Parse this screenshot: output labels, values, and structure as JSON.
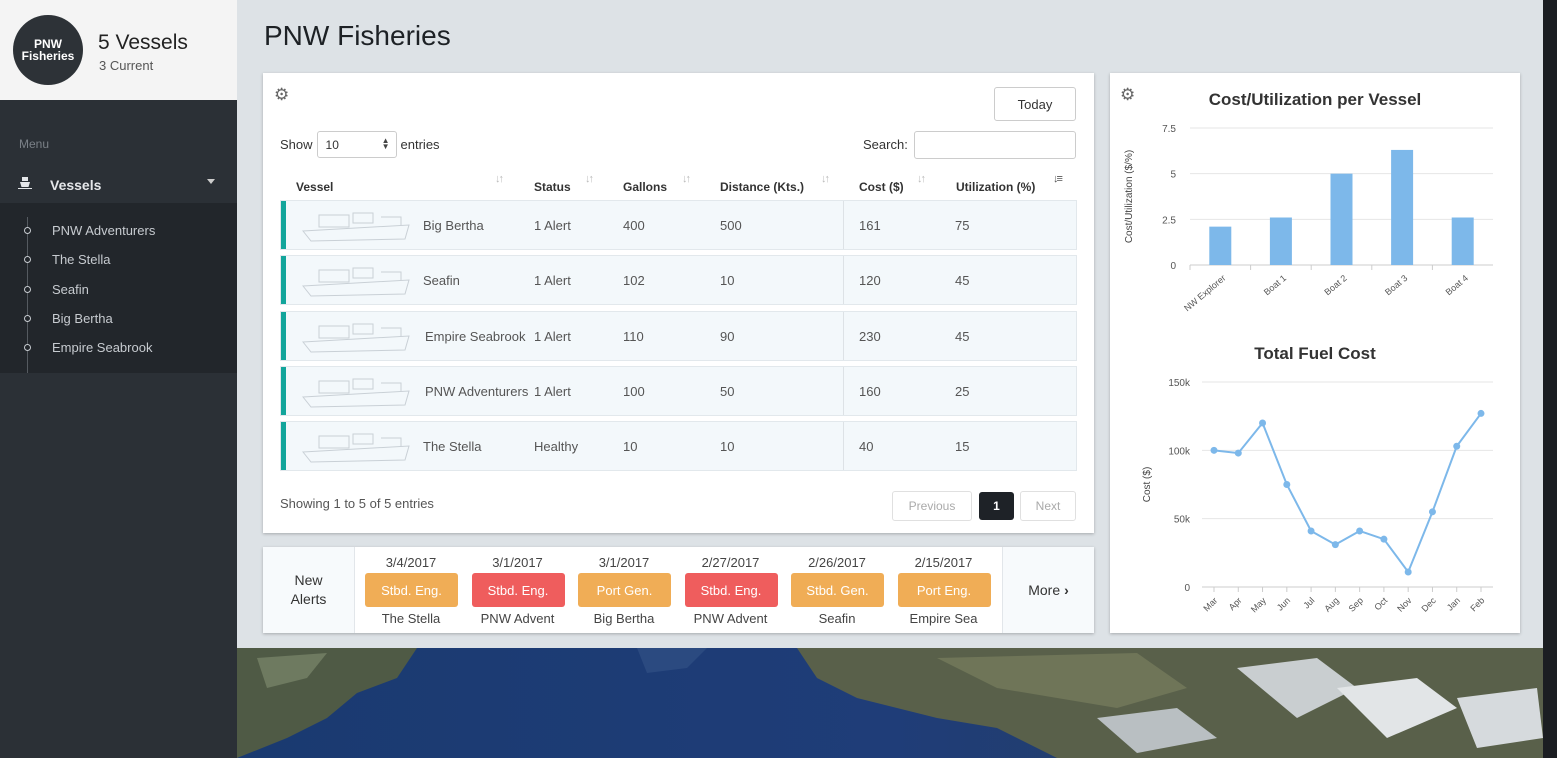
{
  "brand": {
    "logo_line1": "PNW",
    "logo_line2": "Fisheries",
    "title": "5 Vessels",
    "subtitle": "3 Current"
  },
  "sidebar": {
    "menu_label": "Menu",
    "vessels_label": "Vessels",
    "items": [
      {
        "label": "PNW Adventurers"
      },
      {
        "label": "The Stella"
      },
      {
        "label": "Seafin"
      },
      {
        "label": "Big Bertha"
      },
      {
        "label": "Empire Seabrook"
      }
    ]
  },
  "page": {
    "title": "PNW Fisheries"
  },
  "table": {
    "today_label": "Today",
    "show_label": "Show",
    "entries_value": "10",
    "entries_label": "entries",
    "search_label": "Search:",
    "search_value": "",
    "headers": {
      "vessel": "Vessel",
      "status": "Status",
      "gallons": "Gallons",
      "distance": "Distance (Kts.)",
      "cost": "Cost ($)",
      "utilization": "Utilization (%)"
    },
    "rows": [
      {
        "vessel": "Big Bertha",
        "status": "1 Alert",
        "status_type": "alert",
        "gallons": "400",
        "distance": "500",
        "cost": "161",
        "utilization": "75"
      },
      {
        "vessel": "Seafin",
        "status": "1 Alert",
        "status_type": "alert",
        "gallons": "102",
        "distance": "10",
        "cost": "120",
        "utilization": "45"
      },
      {
        "vessel": "Empire Seabrook",
        "status": "1 Alert",
        "status_type": "alert",
        "gallons": "110",
        "distance": "90",
        "cost": "230",
        "utilization": "45"
      },
      {
        "vessel": "PNW Adventurers",
        "status": "1 Alert",
        "status_type": "alert",
        "gallons": "100",
        "distance": "50",
        "cost": "160",
        "utilization": "25"
      },
      {
        "vessel": "The Stella",
        "status": "Healthy",
        "status_type": "healthy",
        "gallons": "10",
        "distance": "10",
        "cost": "40",
        "utilization": "15"
      }
    ],
    "showing_text": "Showing 1 to 5 of 5 entries",
    "prev_label": "Previous",
    "page_number": "1",
    "next_label": "Next"
  },
  "alerts": {
    "title_line1": "New",
    "title_line2": "Alerts",
    "more_label": "More",
    "items": [
      {
        "date": "3/4/2017",
        "label": "Stbd. Eng.",
        "vessel": "The Stella",
        "color": "#f0ad56"
      },
      {
        "date": "3/1/2017",
        "label": "Stbd. Eng.",
        "vessel": "PNW Advent",
        "color": "#ef5d5d"
      },
      {
        "date": "3/1/2017",
        "label": "Port Gen.",
        "vessel": "Big Bertha",
        "color": "#f0ad56"
      },
      {
        "date": "2/27/2017",
        "label": "Stbd. Eng.",
        "vessel": "PNW Advent",
        "color": "#ef5d5d"
      },
      {
        "date": "2/26/2017",
        "label": "Stbd. Gen.",
        "vessel": "Seafin",
        "color": "#f0ad56"
      },
      {
        "date": "2/15/2017",
        "label": "Port Eng.",
        "vessel": "Empire Sea",
        "color": "#f0ad56"
      }
    ]
  },
  "colors": {
    "accent_teal": "#12a59b",
    "alert_red": "#e14a4a",
    "healthy_green": "#2d9b45",
    "chart_blue": "#7db8ea"
  },
  "chart_data": [
    {
      "type": "bar",
      "title": "Cost/Utilization per Vessel",
      "xlabel": "",
      "ylabel": "Cost/Utilization ($/%)",
      "categories": [
        "NW Explorer",
        "Boat 1",
        "Boat 2",
        "Boat 3",
        "Boat 4"
      ],
      "values": [
        2.1,
        2.6,
        5.0,
        6.3,
        2.6
      ],
      "yticks": [
        "0",
        "2.5",
        "5",
        "7.5"
      ],
      "ylim": [
        0,
        7.5
      ],
      "grid": true
    },
    {
      "type": "line",
      "title": "Total Fuel Cost",
      "xlabel": "",
      "ylabel": "Cost ($)",
      "categories": [
        "Mar",
        "Apr",
        "May",
        "Jun",
        "Jul",
        "Aug",
        "Sep",
        "Oct",
        "Nov",
        "Dec",
        "Jan",
        "Feb"
      ],
      "values": [
        100000,
        98000,
        120000,
        75000,
        41000,
        31000,
        41000,
        35000,
        11000,
        55000,
        103000,
        127000
      ],
      "yticks": [
        "0",
        "50k",
        "100k",
        "150k"
      ],
      "ylim": [
        0,
        150000
      ],
      "grid": true
    }
  ]
}
